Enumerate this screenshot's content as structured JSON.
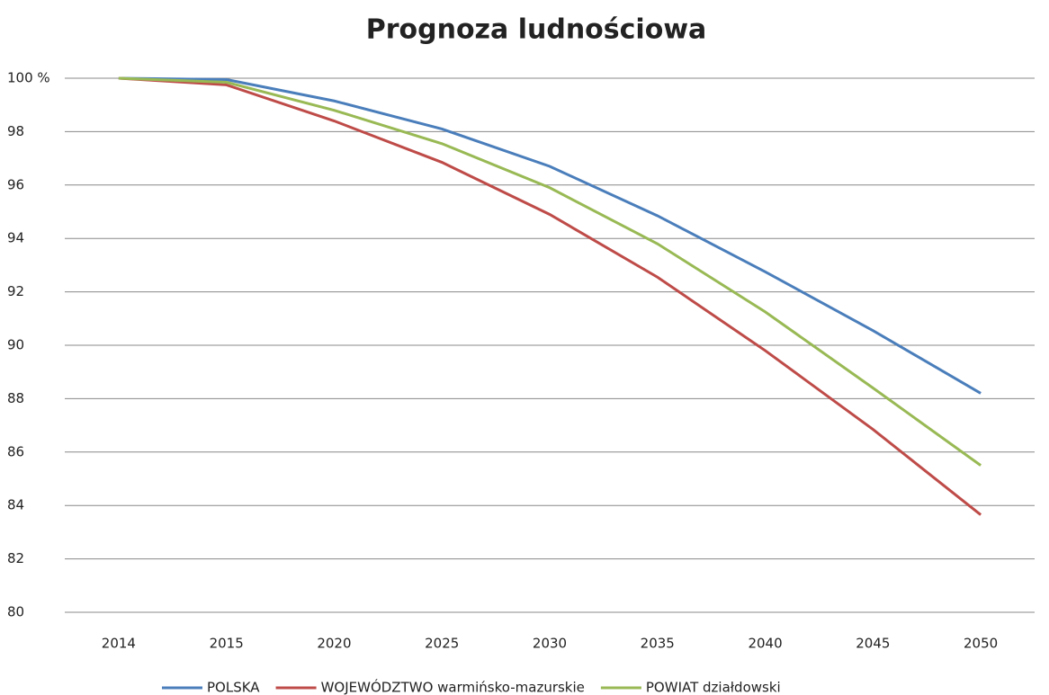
{
  "chart_data": {
    "type": "line",
    "title": "Prognoza ludnościowa",
    "categories": [
      "2014",
      "2015",
      "2020",
      "2025",
      "2030",
      "2035",
      "2040",
      "2045",
      "2050"
    ],
    "series": [
      {
        "name": "POLSKA",
        "color": "#4a7ebb",
        "values": [
          100,
          99.95,
          99.15,
          98.1,
          96.7,
          94.85,
          92.75,
          90.55,
          88.2
        ]
      },
      {
        "name": "WOJEWÓDZTWO warmińsko-mazurskie",
        "color": "#be4b48",
        "values": [
          100,
          99.75,
          98.4,
          96.85,
          94.9,
          92.55,
          89.8,
          86.85,
          83.65
        ]
      },
      {
        "name": "POWIAT działdowski",
        "color": "#98b954",
        "values": [
          100,
          99.85,
          98.8,
          97.55,
          95.9,
          93.8,
          91.25,
          88.4,
          85.5
        ]
      }
    ],
    "ylim": [
      80,
      100
    ],
    "yticks": [
      80,
      82,
      84,
      86,
      88,
      90,
      92,
      94,
      96,
      98,
      {
        "value": 100,
        "label": "100 %"
      }
    ],
    "grid": true,
    "legend": "bottom"
  }
}
